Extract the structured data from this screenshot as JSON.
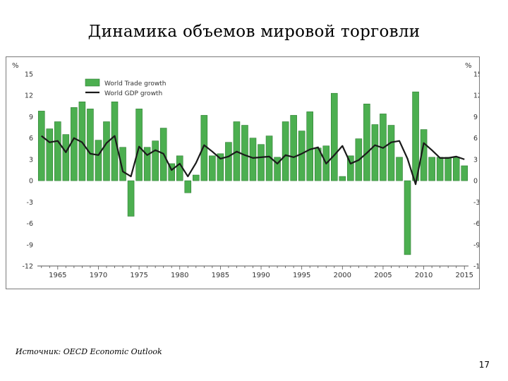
{
  "slide": {
    "title": "Динамика объемов мировой торговли",
    "source": "Источник: OECD Economic Outlook",
    "page_number": "17"
  },
  "colors": {
    "bar_fill": "#4caf50",
    "bar_stroke": "#2e7d32",
    "line": "#1a1a1a",
    "axis_text": "#333333",
    "axis_line": "#555555"
  },
  "chart_data": {
    "type": "bar",
    "title": "",
    "unit_left": "%",
    "unit_right": "%",
    "ylim": [
      -12,
      15
    ],
    "yticks": [
      -12,
      -9,
      -6,
      -3,
      0,
      3,
      6,
      9,
      12,
      15
    ],
    "xlabels": [
      "1965",
      "1970",
      "1975",
      "1980",
      "1985",
      "1990",
      "1995",
      "2000",
      "2005",
      "2010",
      "2015"
    ],
    "legend": {
      "position": "top-left",
      "trade_label": "World Trade growth",
      "gdp_label": "World GDP growth"
    },
    "years": [
      1963,
      1964,
      1965,
      1966,
      1967,
      1968,
      1969,
      1970,
      1971,
      1972,
      1973,
      1974,
      1975,
      1976,
      1977,
      1978,
      1979,
      1980,
      1981,
      1982,
      1983,
      1984,
      1985,
      1986,
      1987,
      1988,
      1989,
      1990,
      1991,
      1992,
      1993,
      1994,
      1995,
      1996,
      1997,
      1998,
      1999,
      2000,
      2001,
      2002,
      2003,
      2004,
      2005,
      2006,
      2007,
      2008,
      2009,
      2010,
      2011,
      2012,
      2013,
      2014,
      2015
    ],
    "series": [
      {
        "name": "World Trade growth",
        "kind": "bar",
        "values": [
          9.8,
          7.3,
          8.3,
          6.5,
          10.3,
          11.1,
          10.1,
          5.7,
          8.3,
          11.1,
          4.7,
          -5.0,
          10.1,
          4.7,
          5.6,
          7.4,
          2.4,
          3.5,
          -1.7,
          0.8,
          9.2,
          3.5,
          3.8,
          5.4,
          8.3,
          7.8,
          6.0,
          5.1,
          6.3,
          3.3,
          8.3,
          9.2,
          7.0,
          9.7,
          4.6,
          4.9,
          12.3,
          0.6,
          3.5,
          5.9,
          10.8,
          7.9,
          9.4,
          7.8,
          3.3,
          -10.4,
          12.5,
          7.2,
          3.3,
          3.3,
          3.3,
          3.3,
          2.1
        ]
      },
      {
        "name": "World GDP growth",
        "kind": "line",
        "values": [
          6.3,
          5.4,
          5.6,
          4.0,
          6.0,
          5.4,
          3.8,
          3.6,
          5.3,
          6.3,
          1.3,
          0.6,
          4.8,
          3.6,
          4.3,
          3.8,
          1.5,
          2.4,
          0.6,
          2.5,
          5.0,
          4.1,
          3.1,
          3.4,
          4.1,
          3.6,
          3.2,
          3.3,
          3.4,
          2.4,
          3.6,
          3.3,
          3.8,
          4.4,
          4.7,
          2.4,
          3.6,
          4.9,
          2.4,
          2.9,
          3.9,
          5.0,
          4.6,
          5.4,
          5.6,
          3.1,
          -0.5,
          5.3,
          4.3,
          3.2,
          3.2,
          3.4,
          3.0
        ]
      }
    ]
  }
}
